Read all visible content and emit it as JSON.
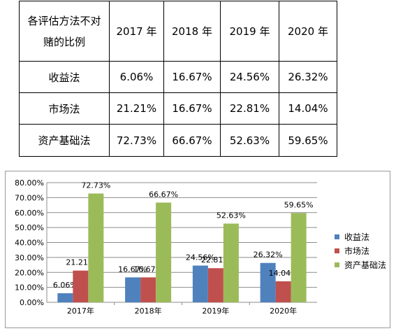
{
  "table": {
    "corner_line1": "各评估方法不对",
    "corner_line2": "赌的比例",
    "years": [
      "2017 年",
      "2018 年",
      "2019 年",
      "2020 年"
    ],
    "rows": [
      {
        "label": "收益法",
        "cells": [
          "6.06%",
          "16.67%",
          "24.56%",
          "26.32%"
        ]
      },
      {
        "label": "市场法",
        "cells": [
          "21.21%",
          "16.67%",
          "22.81%",
          "14.04%"
        ]
      },
      {
        "label": "资产基础法",
        "cells": [
          "72.73%",
          "66.67%",
          "52.63%",
          "59.65%"
        ]
      }
    ]
  },
  "chart_data": {
    "type": "bar",
    "categories": [
      "2017年",
      "2018年",
      "2019年",
      "2020年"
    ],
    "series": [
      {
        "name": "收益法",
        "values": [
          6.06,
          16.67,
          24.56,
          26.32
        ],
        "labels": [
          "6.06%",
          "16.67%",
          "24.56%",
          "26.32%"
        ],
        "color": "#4F81BD"
      },
      {
        "name": "市场法",
        "values": [
          21.21,
          16.67,
          22.81,
          14.04
        ],
        "labels": [
          "21.21%",
          "16.67%",
          "22.81%",
          "14.04%"
        ],
        "color": "#C0504D"
      },
      {
        "name": "资产基础法",
        "values": [
          72.73,
          66.67,
          52.63,
          59.65
        ],
        "labels": [
          "72.73%",
          "66.67%",
          "52.63%",
          "59.65%"
        ],
        "color": "#9BBB59"
      }
    ],
    "ylim": [
      0,
      80
    ],
    "yticks": [
      "0.00%",
      "10.00%",
      "20.00%",
      "30.00%",
      "40.00%",
      "50.00%",
      "60.00%",
      "70.00%",
      "80.00%"
    ],
    "grid": true,
    "legend": "right",
    "title": "",
    "xlabel": "",
    "ylabel": ""
  }
}
